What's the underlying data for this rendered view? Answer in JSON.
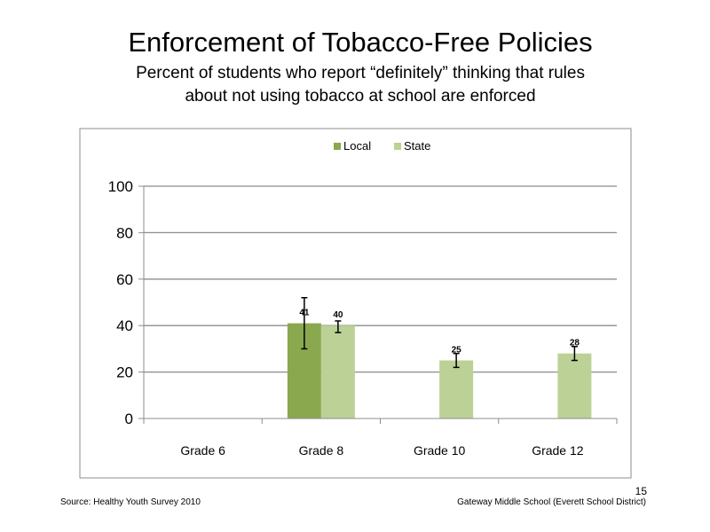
{
  "slide": {
    "title": "Enforcement of Tobacco-Free Policies",
    "subtitle_line1": "Percent of students who report “definitely” thinking that rules",
    "subtitle_line2": "about not using tobacco at school are enforced",
    "source": "Source: Healthy Youth Survey 2010",
    "school": "Gateway Middle School (Everett School District)",
    "page_number": "15"
  },
  "chart_data": {
    "type": "bar",
    "categories": [
      "Grade 6",
      "Grade 8",
      "Grade 10",
      "Grade 12"
    ],
    "ylim": [
      0,
      100
    ],
    "yticks": [
      0,
      20,
      40,
      60,
      80,
      100
    ],
    "grid": true,
    "legend_position": "top",
    "series": [
      {
        "name": "Local",
        "color": "#8aa84e",
        "values": [
          null,
          41,
          null,
          null
        ],
        "labels": [
          "",
          "41",
          "",
          ""
        ],
        "error_low": [
          null,
          30,
          null,
          null
        ],
        "error_high": [
          null,
          52,
          null,
          null
        ]
      },
      {
        "name": "State",
        "color": "#bcd196",
        "values": [
          null,
          40,
          25,
          28
        ],
        "labels": [
          "",
          "40",
          "25",
          "28"
        ],
        "error_low": [
          null,
          37,
          22,
          25
        ],
        "error_high": [
          null,
          42,
          28,
          31
        ]
      }
    ]
  }
}
